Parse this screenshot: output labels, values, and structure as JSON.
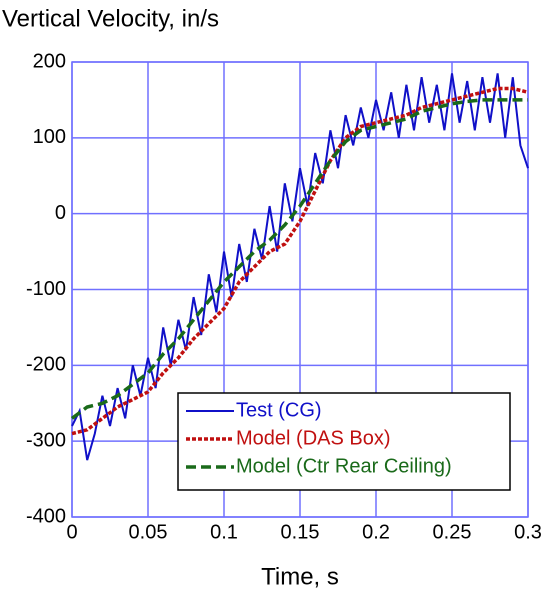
{
  "chart_data": {
    "type": "line",
    "title": "Vertical Velocity, in/s",
    "x_label": "Time, s",
    "xlim": [
      0,
      0.3
    ],
    "xticks": [
      0,
      0.05,
      0.1,
      0.15,
      0.2,
      0.25,
      0.3
    ],
    "ylim": [
      -400,
      200
    ],
    "yticks": [
      -400,
      -300,
      -200,
      -100,
      0,
      100,
      200
    ],
    "grid": true,
    "grid_color": "#7070ff",
    "legend": "lower right",
    "series": [
      {
        "name": "Test (CG)",
        "color": "#1010c8",
        "dash": "none",
        "x": [
          0,
          0.005,
          0.01,
          0.015,
          0.02,
          0.025,
          0.03,
          0.035,
          0.04,
          0.045,
          0.05,
          0.055,
          0.06,
          0.065,
          0.07,
          0.075,
          0.08,
          0.085,
          0.09,
          0.095,
          0.1,
          0.105,
          0.11,
          0.115,
          0.12,
          0.125,
          0.13,
          0.135,
          0.14,
          0.145,
          0.15,
          0.155,
          0.16,
          0.165,
          0.17,
          0.175,
          0.18,
          0.185,
          0.19,
          0.195,
          0.2,
          0.205,
          0.21,
          0.215,
          0.22,
          0.225,
          0.23,
          0.235,
          0.24,
          0.245,
          0.25,
          0.255,
          0.26,
          0.265,
          0.27,
          0.275,
          0.28,
          0.285,
          0.29,
          0.295,
          0.3
        ],
        "values": [
          -280,
          -260,
          -325,
          -290,
          -240,
          -280,
          -230,
          -270,
          -200,
          -240,
          -190,
          -230,
          -150,
          -200,
          -140,
          -180,
          -110,
          -160,
          -80,
          -130,
          -50,
          -110,
          -40,
          -90,
          -20,
          -60,
          10,
          -50,
          40,
          -10,
          60,
          10,
          80,
          40,
          110,
          60,
          130,
          90,
          140,
          100,
          150,
          110,
          160,
          100,
          170,
          110,
          180,
          120,
          170,
          110,
          185,
          120,
          175,
          110,
          180,
          120,
          185,
          100,
          180,
          90,
          60
        ]
      },
      {
        "name": "Model (DAS Box)",
        "color": "#c01010",
        "dash": "4,2",
        "x": [
          0,
          0.01,
          0.02,
          0.03,
          0.04,
          0.05,
          0.06,
          0.07,
          0.08,
          0.09,
          0.1,
          0.11,
          0.12,
          0.13,
          0.14,
          0.15,
          0.16,
          0.17,
          0.18,
          0.19,
          0.2,
          0.21,
          0.22,
          0.23,
          0.24,
          0.25,
          0.26,
          0.27,
          0.28,
          0.29,
          0.3
        ],
        "values": [
          -290,
          -285,
          -270,
          -255,
          -245,
          -235,
          -210,
          -190,
          -165,
          -145,
          -125,
          -90,
          -70,
          -50,
          -40,
          -10,
          30,
          70,
          100,
          115,
          120,
          125,
          130,
          140,
          145,
          150,
          155,
          160,
          165,
          165,
          160
        ]
      },
      {
        "name": "Model (Ctr Rear Ceiling)",
        "color": "#1a6a1a",
        "dash": "10,5",
        "x": [
          0,
          0.01,
          0.02,
          0.03,
          0.04,
          0.05,
          0.06,
          0.07,
          0.08,
          0.09,
          0.1,
          0.11,
          0.12,
          0.13,
          0.14,
          0.15,
          0.16,
          0.17,
          0.18,
          0.19,
          0.2,
          0.21,
          0.22,
          0.23,
          0.24,
          0.25,
          0.26,
          0.27,
          0.28,
          0.29,
          0.3
        ],
        "values": [
          -270,
          -255,
          -250,
          -240,
          -225,
          -210,
          -185,
          -165,
          -140,
          -115,
          -90,
          -70,
          -50,
          -35,
          -15,
          10,
          40,
          70,
          95,
          110,
          115,
          120,
          125,
          135,
          140,
          145,
          148,
          150,
          150,
          150,
          150
        ]
      }
    ]
  }
}
